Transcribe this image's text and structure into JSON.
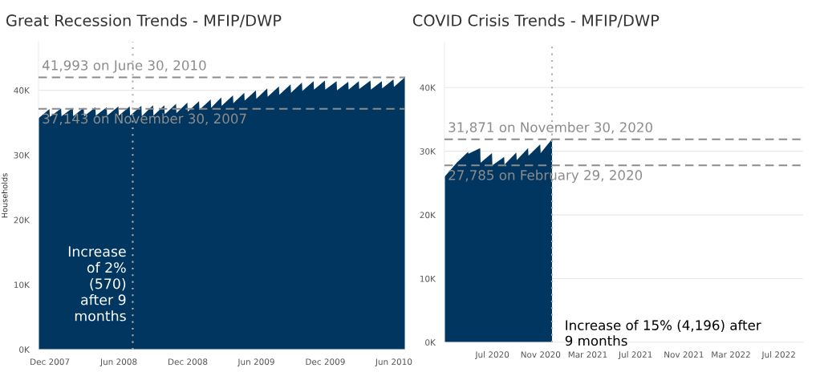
{
  "chart_data": [
    {
      "type": "area",
      "title": "Great Recession Trends - MFIP/DWP",
      "ylabel": "Households",
      "x": [
        "2007-11-01",
        "2007-11-30",
        "2007-12-01",
        "2007-12-31",
        "2008-01-01",
        "2008-01-31",
        "2008-02-01",
        "2008-02-29",
        "2008-03-01",
        "2008-03-31",
        "2008-04-01",
        "2008-04-30",
        "2008-05-01",
        "2008-05-31",
        "2008-06-01",
        "2008-06-30",
        "2008-07-01",
        "2008-07-31",
        "2008-08-01",
        "2008-08-31",
        "2008-09-01",
        "2008-09-30",
        "2008-10-01",
        "2008-10-31",
        "2008-11-01",
        "2008-11-30",
        "2008-12-01",
        "2008-12-31",
        "2009-01-01",
        "2009-01-31",
        "2009-02-01",
        "2009-02-28",
        "2009-03-01",
        "2009-03-31",
        "2009-04-01",
        "2009-04-30",
        "2009-05-01",
        "2009-05-31",
        "2009-06-01",
        "2009-06-30",
        "2009-07-01",
        "2009-07-31",
        "2009-08-01",
        "2009-08-31",
        "2009-09-01",
        "2009-09-30",
        "2009-10-01",
        "2009-10-31",
        "2009-11-01",
        "2009-11-30",
        "2009-12-01",
        "2009-12-31",
        "2010-01-01",
        "2010-01-31",
        "2010-02-01",
        "2010-02-28",
        "2010-03-01",
        "2010-03-31",
        "2010-04-01",
        "2010-04-30",
        "2010-05-01",
        "2010-05-31",
        "2010-06-01",
        "2010-06-30"
      ],
      "series": [
        {
          "color": "#00365f",
          "values": [
            35700,
            37100,
            35900,
            37200,
            36000,
            37300,
            36000,
            37300,
            36000,
            37400,
            36100,
            37400,
            36100,
            37500,
            36100,
            37500,
            36100,
            37600,
            36000,
            37700,
            36100,
            37700,
            36300,
            37900,
            36500,
            38100,
            36700,
            38300,
            37000,
            38600,
            37300,
            38900,
            37600,
            39200,
            38000,
            39600,
            38400,
            40000,
            38700,
            40300,
            39000,
            40600,
            39300,
            40900,
            39600,
            41200,
            39900,
            41400,
            40100,
            41500,
            40100,
            41400,
            40000,
            41300,
            40100,
            41400,
            40200,
            41500,
            40100,
            41400,
            40300,
            41700,
            40500,
            42000
          ]
        }
      ],
      "xlim": [
        "2007-11-01",
        "2010-07-01"
      ],
      "xticks": [
        {
          "value": "2007-12-01",
          "label": "Dec 2007"
        },
        {
          "value": "2008-06-01",
          "label": "Jun 2008"
        },
        {
          "value": "2008-12-01",
          "label": "Dec 2008"
        },
        {
          "value": "2009-06-01",
          "label": "Jun 2009"
        },
        {
          "value": "2009-12-01",
          "label": "Dec 2009"
        },
        {
          "value": "2010-06-01",
          "label": "Jun 2010"
        }
      ],
      "ylim": [
        0,
        47500
      ],
      "yticks": [
        {
          "value": 0,
          "label": "0K"
        },
        {
          "value": 10000,
          "label": "10K"
        },
        {
          "value": 20000,
          "label": "20K"
        },
        {
          "value": 30000,
          "label": "30K"
        },
        {
          "value": 40000,
          "label": "40K"
        }
      ],
      "grid": "y",
      "ref_lines": [
        {
          "axis": "y",
          "value": 41993,
          "label": "41,993 on June 30, 2010",
          "color": "#8c8c8c",
          "line_style": "dashed"
        },
        {
          "axis": "y",
          "value": 37143,
          "label": "37,143 on November 30, 2007",
          "color": "#8c8c8c",
          "line_style": "dashed"
        },
        {
          "axis": "x",
          "value": "2008-07-08",
          "color": "#b0b0b0",
          "line_style": "dotted"
        }
      ],
      "annotations": [
        "Increase\nof 2%\n(570)\nafter 9\nmonths"
      ]
    },
    {
      "type": "area",
      "title": "COVID Crisis Trends - MFIP/DWP",
      "x": [
        "2020-03-01",
        "2020-03-31",
        "2020-04-01",
        "2020-04-30",
        "2020-05-01",
        "2020-05-31",
        "2020-06-01",
        "2020-06-30",
        "2020-07-01",
        "2020-07-31",
        "2020-08-01",
        "2020-08-31",
        "2020-09-01",
        "2020-09-30",
        "2020-10-01",
        "2020-10-31",
        "2020-11-01",
        "2020-11-30"
      ],
      "series": [
        {
          "color": "#00365f",
          "values": [
            26000,
            28100,
            28200,
            29900,
            29600,
            30500,
            28200,
            29700,
            27800,
            29100,
            27900,
            29800,
            28600,
            30500,
            29300,
            31100,
            29700,
            31900
          ]
        }
      ],
      "xlim": [
        "2020-03-01",
        "2022-09-01"
      ],
      "xticks": [
        {
          "value": "2020-07-01",
          "label": "Jul 2020"
        },
        {
          "value": "2020-11-01",
          "label": "Nov 2020"
        },
        {
          "value": "2021-03-01",
          "label": "Mar 2021"
        },
        {
          "value": "2021-07-01",
          "label": "Jul 2021"
        },
        {
          "value": "2021-11-01",
          "label": "Nov 2021"
        },
        {
          "value": "2022-03-01",
          "label": "Mar 2022"
        },
        {
          "value": "2022-07-01",
          "label": "Jul 2022"
        }
      ],
      "ylim": [
        0,
        47200
      ],
      "yticks": [
        {
          "value": 0,
          "label": "0K"
        },
        {
          "value": 10000,
          "label": "10K"
        },
        {
          "value": 20000,
          "label": "20K"
        },
        {
          "value": 30000,
          "label": "30K"
        },
        {
          "value": 40000,
          "label": "40K"
        }
      ],
      "grid": "y",
      "ref_lines": [
        {
          "axis": "y",
          "value": 31871,
          "label": "31,871 on November 30, 2020",
          "color": "#8c8c8c",
          "line_style": "dashed"
        },
        {
          "axis": "y",
          "value": 27785,
          "label": "27,785 on February 29, 2020",
          "color": "#8c8c8c",
          "line_style": "dashed"
        },
        {
          "axis": "x",
          "value": "2020-11-30",
          "color": "#b0b0b0",
          "line_style": "dotted"
        }
      ],
      "annotations": [
        "Increase of 15% (4,196) after\n9 months"
      ]
    }
  ]
}
